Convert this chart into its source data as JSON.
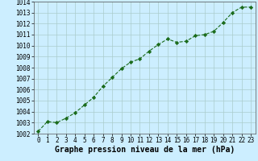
{
  "x": [
    0,
    1,
    2,
    3,
    4,
    5,
    6,
    7,
    8,
    9,
    10,
    11,
    12,
    13,
    14,
    15,
    16,
    17,
    18,
    19,
    20,
    21,
    22,
    23
  ],
  "y": [
    1002.2,
    1003.1,
    1003.0,
    1003.4,
    1003.9,
    1004.6,
    1005.3,
    1006.3,
    1007.1,
    1007.9,
    1008.5,
    1008.8,
    1009.5,
    1010.1,
    1010.6,
    1010.3,
    1010.4,
    1010.9,
    1011.0,
    1011.3,
    1012.1,
    1013.0,
    1013.5,
    1013.5
  ],
  "ylim": [
    1002,
    1014
  ],
  "xlim": [
    -0.5,
    23.5
  ],
  "yticks": [
    1002,
    1003,
    1004,
    1005,
    1006,
    1007,
    1008,
    1009,
    1010,
    1011,
    1012,
    1013,
    1014
  ],
  "xticks": [
    0,
    1,
    2,
    3,
    4,
    5,
    6,
    7,
    8,
    9,
    10,
    11,
    12,
    13,
    14,
    15,
    16,
    17,
    18,
    19,
    20,
    21,
    22,
    23
  ],
  "xlabel": "Graphe pression niveau de la mer (hPa)",
  "line_color": "#1a6b1a",
  "marker": "D",
  "marker_size": 2.2,
  "bg_color": "#cceeff",
  "grid_color": "#aacccc",
  "tick_label_fontsize": 5.5,
  "xlabel_fontsize": 7.0,
  "line_width": 0.8
}
